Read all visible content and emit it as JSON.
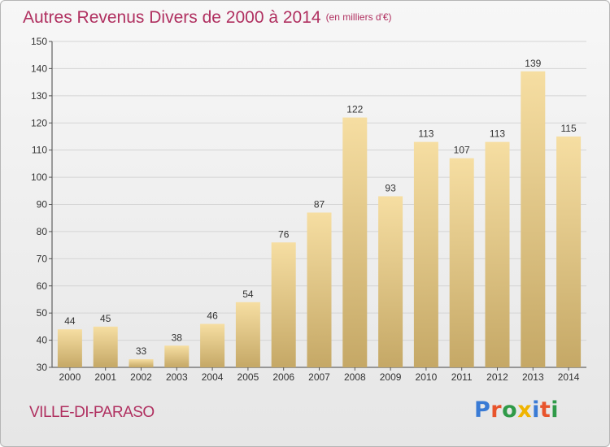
{
  "header": {
    "title": "Autres Revenus Divers de 2000 à 2014",
    "unit": "(en milliers d'€)"
  },
  "footer": {
    "place": "VILLE-DI-PARASO",
    "logo_letters": [
      "P",
      "r",
      "o",
      "x",
      "i",
      "t",
      "i"
    ],
    "logo_colors": [
      "#3a7bd5",
      "#e8542c",
      "#2f9a48",
      "#f0b400",
      "#3a7bd5",
      "#e8542c",
      "#2f9a48"
    ]
  },
  "colors": {
    "title": "#b03060",
    "bar_top": "#f6dea2",
    "bar_bottom": "#c5a866",
    "grid": "#d4d4d4"
  },
  "chart_data": {
    "type": "bar",
    "title": "Autres Revenus Divers de 2000 à 2014",
    "subtitle": "(en milliers d'€)",
    "categories": [
      "2000",
      "2001",
      "2002",
      "2003",
      "2004",
      "2005",
      "2006",
      "2007",
      "2008",
      "2009",
      "2010",
      "2011",
      "2012",
      "2013",
      "2014"
    ],
    "values": [
      44,
      45,
      33,
      38,
      46,
      54,
      76,
      87,
      122,
      93,
      113,
      107,
      113,
      139,
      115
    ],
    "ylim": [
      30,
      150
    ],
    "yticks": [
      30,
      40,
      50,
      60,
      70,
      80,
      90,
      100,
      110,
      120,
      130,
      140,
      150
    ],
    "grid": true,
    "xlabel": "",
    "ylabel": ""
  }
}
